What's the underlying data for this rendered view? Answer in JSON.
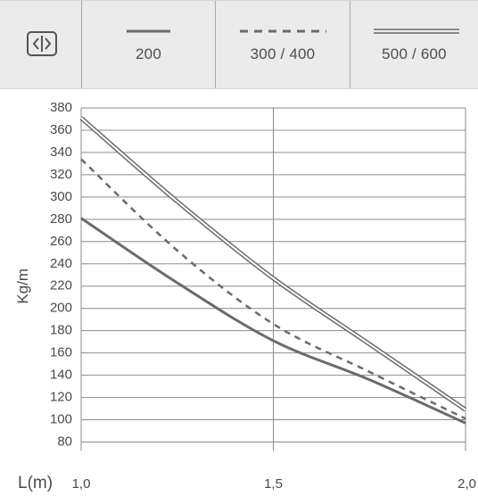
{
  "header": {
    "icon": "width-arrows-icon",
    "legend": [
      {
        "label": "200",
        "style": "solid"
      },
      {
        "label": "300 / 400",
        "style": "dashed"
      },
      {
        "label": "500 / 600",
        "style": "double"
      }
    ]
  },
  "colors": {
    "line": "#6b6b6b",
    "grid": "#8c8c8c",
    "header_bg": "#ebebeb",
    "text": "#444444"
  },
  "chart_data": {
    "type": "line",
    "ylabel": "Kg/m",
    "xlabel": "L(m)",
    "xlim": [
      1.0,
      2.0
    ],
    "ylim": [
      70,
      380
    ],
    "xticks": [
      "1,0",
      "1,5",
      "2,0"
    ],
    "xtick_values": [
      1.0,
      1.5,
      2.0
    ],
    "yticks": [
      80,
      100,
      120,
      140,
      160,
      180,
      200,
      220,
      240,
      260,
      280,
      300,
      320,
      340,
      360,
      380
    ],
    "grid": true,
    "legend_position": "top",
    "series": [
      {
        "name": "200",
        "style": "solid",
        "x": [
          1.0,
          1.25,
          1.5,
          1.75,
          2.0
        ],
        "y": [
          281,
          223,
          171,
          136,
          97
        ]
      },
      {
        "name": "300 / 400",
        "style": "dashed",
        "x": [
          1.0,
          1.25,
          1.5,
          1.75,
          2.0
        ],
        "y": [
          334,
          252,
          186,
          143,
          101
        ]
      },
      {
        "name": "500 / 600",
        "style": "double",
        "x": [
          1.0,
          1.25,
          1.5,
          1.75,
          2.0
        ],
        "y": [
          371,
          296,
          227,
          168,
          109
        ]
      }
    ]
  }
}
